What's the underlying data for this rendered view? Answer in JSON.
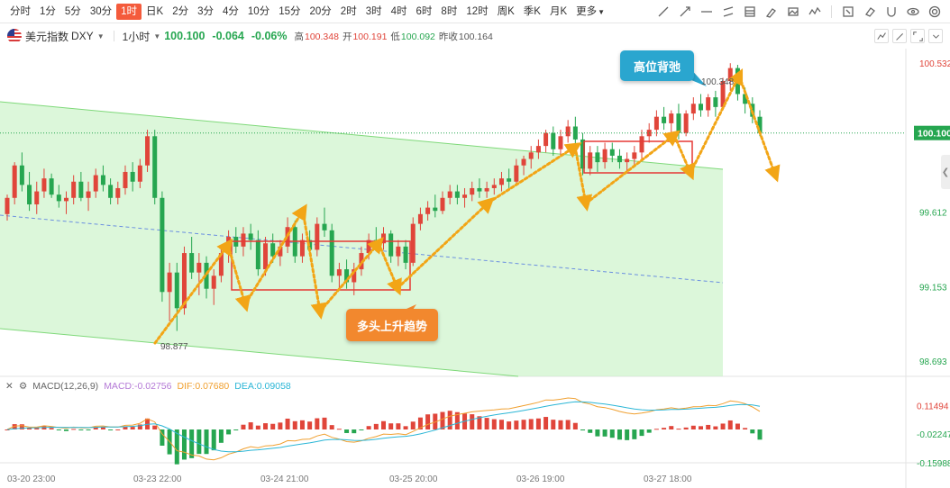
{
  "toolbar": {
    "timeframes": [
      "分时",
      "1分",
      "5分",
      "30分",
      "1时",
      "日K",
      "2分",
      "3分",
      "4分",
      "10分",
      "15分",
      "20分",
      "2时",
      "3时",
      "4时",
      "6时",
      "8时",
      "12时",
      "周K",
      "季K",
      "月K",
      "更多"
    ],
    "active": "1时"
  },
  "symbol": {
    "name": "美元指数",
    "code": "DXY",
    "interval": "1小时",
    "price": "100.100",
    "change": "-0.064",
    "change_pct": "-0.06%",
    "high_label": "高",
    "high": "100.348",
    "open_label": "开",
    "open": "100.191",
    "low_label": "低",
    "low": "100.092",
    "prev_label": "昨收",
    "prev_close": "100.164"
  },
  "icons": {
    "draw_tools": [
      "trendline-icon",
      "ray-icon",
      "horizontal-line-icon",
      "parallel-channel-icon",
      "fib-icon",
      "brush-icon",
      "image-icon",
      "chart-pattern-icon",
      "note-icon",
      "eraser-icon",
      "magnet-icon",
      "eye-icon",
      "settings-icon"
    ],
    "side_tools": [
      "indicator-icon",
      "draw-icon",
      "fullscreen-icon",
      "collapse-icon"
    ]
  },
  "colors": {
    "up": "#e0453a",
    "down": "#26a650",
    "channel": "#c9f2c6",
    "dif": "#f0a030",
    "dea": "#2bb6d6"
  },
  "callouts": {
    "top": "高位背弛",
    "bottom": "多头上升趋势"
  },
  "price_labels": {
    "current": "100.100",
    "high_note": "100.348",
    "low_note": "98.877"
  },
  "macd": {
    "label": "MACD(12,26,9)",
    "macd_text": "MACD:-0.02756",
    "dif_text": "DIF:0.07680",
    "dea_text": "DEA:0.09058"
  },
  "chart_data": {
    "type": "candlestick",
    "y_axis": {
      "ticks": [
        100.532,
        99.612,
        99.153,
        98.693
      ],
      "range": [
        98.6,
        100.62
      ]
    },
    "x_axis": {
      "ticks": [
        "03-20 23:00",
        "03-23 22:00",
        "03-24 21:00",
        "03-25 20:00",
        "03-26 19:00",
        "03-27 18:00"
      ]
    },
    "candles": [
      [
        99.6,
        99.72,
        99.56,
        99.7
      ],
      [
        99.7,
        99.92,
        99.66,
        99.9
      ],
      [
        99.9,
        99.98,
        99.74,
        99.78
      ],
      [
        99.78,
        99.86,
        99.62,
        99.66
      ],
      [
        99.66,
        99.8,
        99.6,
        99.74
      ],
      [
        99.74,
        99.88,
        99.7,
        99.82
      ],
      [
        99.82,
        99.85,
        99.7,
        99.72
      ],
      [
        99.72,
        99.78,
        99.64,
        99.68
      ],
      [
        99.68,
        99.74,
        99.6,
        99.7
      ],
      [
        99.7,
        99.84,
        99.66,
        99.8
      ],
      [
        99.8,
        99.86,
        99.68,
        99.7
      ],
      [
        99.7,
        99.8,
        99.62,
        99.74
      ],
      [
        99.74,
        99.88,
        99.7,
        99.84
      ],
      [
        99.84,
        99.9,
        99.74,
        99.78
      ],
      [
        99.78,
        99.82,
        99.66,
        99.7
      ],
      [
        99.7,
        99.8,
        99.66,
        99.76
      ],
      [
        99.76,
        99.9,
        99.72,
        99.86
      ],
      [
        99.86,
        99.92,
        99.74,
        99.8
      ],
      [
        99.8,
        99.94,
        99.76,
        99.9
      ],
      [
        99.9,
        100.12,
        99.86,
        100.08
      ],
      [
        100.08,
        100.12,
        99.66,
        99.7
      ],
      [
        99.7,
        99.74,
        99.06,
        99.12
      ],
      [
        99.12,
        99.3,
        98.94,
        99.24
      ],
      [
        99.24,
        99.3,
        98.88,
        99.02
      ],
      [
        99.02,
        99.4,
        98.98,
        99.36
      ],
      [
        99.36,
        99.46,
        99.2,
        99.24
      ],
      [
        99.24,
        99.36,
        99.1,
        99.3
      ],
      [
        99.3,
        99.34,
        99.08,
        99.14
      ],
      [
        99.14,
        99.26,
        99.04,
        99.22
      ],
      [
        99.22,
        99.4,
        99.18,
        99.36
      ],
      [
        99.36,
        99.5,
        99.3,
        99.46
      ],
      [
        99.46,
        99.52,
        99.36,
        99.4
      ],
      [
        99.4,
        99.52,
        99.34,
        99.48
      ],
      [
        99.48,
        99.54,
        99.38,
        99.44
      ],
      [
        99.44,
        99.5,
        99.22,
        99.26
      ],
      [
        99.26,
        99.46,
        99.22,
        99.42
      ],
      [
        99.42,
        99.48,
        99.3,
        99.34
      ],
      [
        99.34,
        99.44,
        99.28,
        99.4
      ],
      [
        99.4,
        99.58,
        99.36,
        99.52
      ],
      [
        99.52,
        99.56,
        99.3,
        99.34
      ],
      [
        99.34,
        99.48,
        99.3,
        99.44
      ],
      [
        99.44,
        99.5,
        99.34,
        99.38
      ],
      [
        99.38,
        99.58,
        99.34,
        99.54
      ],
      [
        99.54,
        99.64,
        99.46,
        99.5
      ],
      [
        99.5,
        99.54,
        99.18,
        99.22
      ],
      [
        99.22,
        99.3,
        99.14,
        99.26
      ],
      [
        99.26,
        99.32,
        99.14,
        99.18
      ],
      [
        99.18,
        99.3,
        99.1,
        99.26
      ],
      [
        99.26,
        99.4,
        99.22,
        99.36
      ],
      [
        99.36,
        99.48,
        99.32,
        99.44
      ],
      [
        99.44,
        99.52,
        99.38,
        99.42
      ],
      [
        99.42,
        99.52,
        99.38,
        99.48
      ],
      [
        99.48,
        99.5,
        99.3,
        99.34
      ],
      [
        99.34,
        99.44,
        99.28,
        99.4
      ],
      [
        99.4,
        99.44,
        99.26,
        99.3
      ],
      [
        99.3,
        99.58,
        99.28,
        99.54
      ],
      [
        99.54,
        99.64,
        99.5,
        99.6
      ],
      [
        99.6,
        99.68,
        99.56,
        99.64
      ],
      [
        99.64,
        99.72,
        99.58,
        99.62
      ],
      [
        99.62,
        99.74,
        99.6,
        99.7
      ],
      [
        99.7,
        99.78,
        99.66,
        99.74
      ],
      [
        99.74,
        99.78,
        99.66,
        99.7
      ],
      [
        99.7,
        99.76,
        99.64,
        99.72
      ],
      [
        99.72,
        99.8,
        99.68,
        99.76
      ],
      [
        99.76,
        99.82,
        99.7,
        99.74
      ],
      [
        99.74,
        99.8,
        99.7,
        99.76
      ],
      [
        99.76,
        99.82,
        99.72,
        99.78
      ],
      [
        99.78,
        99.86,
        99.74,
        99.82
      ],
      [
        99.82,
        99.88,
        99.76,
        99.8
      ],
      [
        99.8,
        99.94,
        99.78,
        99.9
      ],
      [
        99.9,
        99.96,
        99.84,
        99.94
      ],
      [
        99.94,
        100.02,
        99.88,
        99.98
      ],
      [
        99.98,
        100.06,
        99.94,
        100.02
      ],
      [
        100.02,
        100.12,
        99.98,
        100.1
      ],
      [
        100.1,
        100.14,
        99.96,
        100.0
      ],
      [
        100.0,
        100.12,
        99.96,
        100.08
      ],
      [
        100.08,
        100.18,
        100.04,
        100.14
      ],
      [
        100.14,
        100.2,
        100.02,
        100.06
      ],
      [
        100.06,
        100.1,
        99.84,
        99.88
      ],
      [
        99.88,
        100.02,
        99.84,
        99.98
      ],
      [
        99.98,
        100.02,
        99.86,
        99.92
      ],
      [
        99.92,
        100.04,
        99.88,
        100.0
      ],
      [
        100.0,
        100.04,
        99.92,
        99.96
      ],
      [
        99.96,
        100.0,
        99.88,
        99.92
      ],
      [
        99.92,
        99.98,
        99.86,
        99.94
      ],
      [
        99.94,
        100.02,
        99.9,
        99.98
      ],
      [
        99.98,
        100.12,
        99.94,
        100.08
      ],
      [
        100.08,
        100.16,
        100.04,
        100.12
      ],
      [
        100.12,
        100.24,
        100.08,
        100.2
      ],
      [
        100.2,
        100.26,
        100.12,
        100.16
      ],
      [
        100.16,
        100.24,
        100.1,
        100.22
      ],
      [
        100.22,
        100.28,
        100.06,
        100.1
      ],
      [
        100.1,
        100.24,
        100.08,
        100.22
      ],
      [
        100.22,
        100.32,
        100.18,
        100.28
      ],
      [
        100.28,
        100.34,
        100.2,
        100.24
      ],
      [
        100.24,
        100.34,
        100.2,
        100.32
      ],
      [
        100.32,
        100.36,
        100.2,
        100.26
      ],
      [
        100.26,
        100.44,
        100.24,
        100.42
      ],
      [
        100.42,
        100.53,
        100.36,
        100.5
      ],
      [
        100.5,
        100.52,
        100.3,
        100.34
      ],
      [
        100.34,
        100.38,
        100.22,
        100.28
      ],
      [
        100.28,
        100.32,
        100.16,
        100.2
      ],
      [
        100.2,
        100.24,
        100.08,
        100.1
      ]
    ],
    "series": [
      {
        "name": "MACD",
        "type": "histogram"
      },
      {
        "name": "DIF",
        "type": "line"
      },
      {
        "name": "DEA",
        "type": "line"
      }
    ],
    "macd_axis": {
      "ticks": [
        0.11494,
        -0.02247,
        -0.15988
      ]
    }
  }
}
